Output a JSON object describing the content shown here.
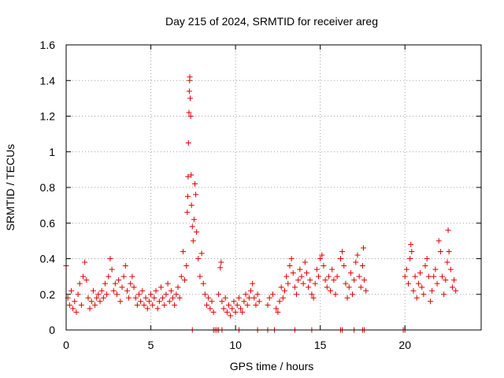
{
  "chart_data": {
    "type": "scatter",
    "title": "Day 215 of 2024, SRMTID for receiver areg",
    "xlabel": "GPS time / hours",
    "ylabel": "SRMTID / TECUs",
    "xlim": [
      0,
      24.5
    ],
    "ylim": [
      0,
      1.6
    ],
    "xticks": [
      0,
      5,
      10,
      15,
      20
    ],
    "xtick_labels": [
      "0",
      "5",
      "10",
      "15",
      "20"
    ],
    "yticks": [
      0,
      0.2,
      0.4,
      0.6,
      0.8,
      1,
      1.2,
      1.4,
      1.6
    ],
    "ytick_labels": [
      "0",
      "0.2",
      "0.4",
      "0.6",
      "0.8",
      "1",
      "1.2",
      "1.4",
      "1.6"
    ],
    "grid": true,
    "marker": "+",
    "marker_color": "#e00000",
    "series": [
      {
        "name": "SRMTID",
        "points": [
          [
            0.0,
            0.36
          ],
          [
            0.1,
            0.18
          ],
          [
            0.2,
            0.14
          ],
          [
            0.3,
            0.22
          ],
          [
            0.4,
            0.12
          ],
          [
            0.5,
            0.16
          ],
          [
            0.6,
            0.1
          ],
          [
            0.7,
            0.2
          ],
          [
            0.8,
            0.26
          ],
          [
            0.9,
            0.14
          ],
          [
            1.0,
            0.3
          ],
          [
            1.1,
            0.38
          ],
          [
            1.2,
            0.28
          ],
          [
            1.3,
            0.18
          ],
          [
            1.4,
            0.12
          ],
          [
            1.5,
            0.16
          ],
          [
            1.6,
            0.22
          ],
          [
            1.7,
            0.14
          ],
          [
            1.8,
            0.18
          ],
          [
            1.9,
            0.2
          ],
          [
            2.0,
            0.16
          ],
          [
            2.1,
            0.22
          ],
          [
            2.2,
            0.18
          ],
          [
            2.3,
            0.26
          ],
          [
            2.4,
            0.2
          ],
          [
            2.5,
            0.3
          ],
          [
            2.6,
            0.4
          ],
          [
            2.7,
            0.34
          ],
          [
            2.8,
            0.22
          ],
          [
            2.9,
            0.26
          ],
          [
            3.0,
            0.2
          ],
          [
            3.1,
            0.28
          ],
          [
            3.2,
            0.16
          ],
          [
            3.3,
            0.24
          ],
          [
            3.4,
            0.3
          ],
          [
            3.5,
            0.36
          ],
          [
            3.6,
            0.22
          ],
          [
            3.7,
            0.18
          ],
          [
            3.8,
            0.26
          ],
          [
            3.9,
            0.3
          ],
          [
            4.0,
            0.24
          ],
          [
            4.1,
            0.18
          ],
          [
            4.2,
            0.14
          ],
          [
            4.3,
            0.2
          ],
          [
            4.4,
            0.16
          ],
          [
            4.5,
            0.22
          ],
          [
            4.6,
            0.14
          ],
          [
            4.7,
            0.18
          ],
          [
            4.8,
            0.12
          ],
          [
            4.9,
            0.16
          ],
          [
            5.0,
            0.2
          ],
          [
            5.1,
            0.14
          ],
          [
            5.2,
            0.18
          ],
          [
            5.3,
            0.22
          ],
          [
            5.4,
            0.12
          ],
          [
            5.5,
            0.16
          ],
          [
            5.6,
            0.24
          ],
          [
            5.7,
            0.18
          ],
          [
            5.8,
            0.14
          ],
          [
            5.9,
            0.2
          ],
          [
            6.0,
            0.26
          ],
          [
            6.1,
            0.16
          ],
          [
            6.2,
            0.22
          ],
          [
            6.3,
            0.18
          ],
          [
            6.4,
            0.14
          ],
          [
            6.5,
            0.2
          ],
          [
            6.6,
            0.24
          ],
          [
            6.7,
            0.18
          ],
          [
            6.8,
            0.3
          ],
          [
            6.9,
            0.44
          ],
          [
            7.0,
            0.28
          ],
          [
            7.1,
            0.36
          ],
          [
            7.15,
            0.66
          ],
          [
            7.18,
            0.75
          ],
          [
            7.2,
            0.86
          ],
          [
            7.22,
            1.05
          ],
          [
            7.25,
            1.22
          ],
          [
            7.27,
            1.34
          ],
          [
            7.29,
            1.4
          ],
          [
            7.3,
            1.42
          ],
          [
            7.32,
            1.3
          ],
          [
            7.35,
            1.2
          ],
          [
            7.38,
            0.87
          ],
          [
            7.4,
            0.7
          ],
          [
            7.45,
            0.58
          ],
          [
            7.5,
            0.5
          ],
          [
            7.55,
            0.62
          ],
          [
            7.6,
            0.82
          ],
          [
            7.65,
            0.76
          ],
          [
            7.7,
            0.55
          ],
          [
            7.8,
            0.4
          ],
          [
            7.9,
            0.3
          ],
          [
            8.0,
            0.43
          ],
          [
            8.1,
            0.26
          ],
          [
            8.2,
            0.2
          ],
          [
            8.3,
            0.14
          ],
          [
            8.4,
            0.18
          ],
          [
            8.5,
            0.12
          ],
          [
            8.6,
            0.16
          ],
          [
            8.7,
            0.1
          ],
          [
            9.0,
            0.2
          ],
          [
            9.1,
            0.35
          ],
          [
            9.15,
            0.38
          ],
          [
            9.2,
            0.16
          ],
          [
            9.3,
            0.12
          ],
          [
            9.4,
            0.18
          ],
          [
            9.5,
            0.1
          ],
          [
            9.6,
            0.14
          ],
          [
            9.7,
            0.08
          ],
          [
            9.8,
            0.12
          ],
          [
            9.9,
            0.16
          ],
          [
            10.0,
            0.1
          ],
          [
            10.1,
            0.14
          ],
          [
            10.2,
            0.18
          ],
          [
            10.3,
            0.12
          ],
          [
            10.4,
            0.1
          ],
          [
            10.5,
            0.16
          ],
          [
            10.6,
            0.2
          ],
          [
            10.7,
            0.14
          ],
          [
            10.8,
            0.18
          ],
          [
            10.9,
            0.22
          ],
          [
            11.0,
            0.26
          ],
          [
            11.1,
            0.18
          ],
          [
            11.2,
            0.14
          ],
          [
            11.3,
            0.2
          ],
          [
            11.4,
            0.16
          ],
          [
            11.9,
            0.14
          ],
          [
            12.0,
            0.18
          ],
          [
            12.2,
            0.2
          ],
          [
            12.4,
            0.12
          ],
          [
            12.5,
            0.1
          ],
          [
            12.6,
            0.16
          ],
          [
            12.7,
            0.24
          ],
          [
            12.8,
            0.18
          ],
          [
            12.9,
            0.22
          ],
          [
            13.0,
            0.3
          ],
          [
            13.1,
            0.26
          ],
          [
            13.2,
            0.36
          ],
          [
            13.3,
            0.4
          ],
          [
            13.4,
            0.32
          ],
          [
            13.5,
            0.24
          ],
          [
            13.6,
            0.2
          ],
          [
            13.7,
            0.28
          ],
          [
            13.8,
            0.34
          ],
          [
            13.9,
            0.3
          ],
          [
            14.0,
            0.26
          ],
          [
            14.1,
            0.38
          ],
          [
            14.2,
            0.32
          ],
          [
            14.3,
            0.24
          ],
          [
            14.4,
            0.28
          ],
          [
            14.5,
            0.2
          ],
          [
            14.6,
            0.18
          ],
          [
            14.7,
            0.26
          ],
          [
            14.8,
            0.34
          ],
          [
            14.9,
            0.3
          ],
          [
            15.0,
            0.4
          ],
          [
            15.1,
            0.42
          ],
          [
            15.2,
            0.36
          ],
          [
            15.3,
            0.28
          ],
          [
            15.4,
            0.24
          ],
          [
            15.5,
            0.3
          ],
          [
            15.6,
            0.22
          ],
          [
            15.7,
            0.34
          ],
          [
            15.8,
            0.28
          ],
          [
            15.9,
            0.2
          ],
          [
            16.0,
            0.3
          ],
          [
            16.2,
            0.4
          ],
          [
            16.3,
            0.44
          ],
          [
            16.4,
            0.36
          ],
          [
            16.5,
            0.26
          ],
          [
            16.6,
            0.18
          ],
          [
            16.7,
            0.24
          ],
          [
            16.8,
            0.32
          ],
          [
            16.9,
            0.2
          ],
          [
            17.0,
            0.28
          ],
          [
            17.1,
            0.38
          ],
          [
            17.2,
            0.42
          ],
          [
            17.3,
            0.3
          ],
          [
            17.4,
            0.24
          ],
          [
            17.5,
            0.36
          ],
          [
            17.55,
            0.46
          ],
          [
            17.6,
            0.28
          ],
          [
            17.7,
            0.22
          ],
          [
            20.0,
            0.3
          ],
          [
            20.1,
            0.34
          ],
          [
            20.2,
            0.26
          ],
          [
            20.3,
            0.4
          ],
          [
            20.35,
            0.48
          ],
          [
            20.4,
            0.44
          ],
          [
            20.5,
            0.22
          ],
          [
            20.6,
            0.3
          ],
          [
            20.7,
            0.18
          ],
          [
            20.8,
            0.26
          ],
          [
            20.9,
            0.32
          ],
          [
            21.0,
            0.24
          ],
          [
            21.1,
            0.2
          ],
          [
            21.2,
            0.36
          ],
          [
            21.3,
            0.4
          ],
          [
            21.4,
            0.3
          ],
          [
            21.5,
            0.16
          ],
          [
            21.6,
            0.22
          ],
          [
            21.7,
            0.3
          ],
          [
            21.8,
            0.34
          ],
          [
            21.9,
            0.26
          ],
          [
            22.0,
            0.5
          ],
          [
            22.1,
            0.44
          ],
          [
            22.2,
            0.3
          ],
          [
            22.3,
            0.2
          ],
          [
            22.4,
            0.28
          ],
          [
            22.5,
            0.38
          ],
          [
            22.55,
            0.56
          ],
          [
            22.6,
            0.44
          ],
          [
            22.7,
            0.34
          ],
          [
            22.8,
            0.24
          ],
          [
            22.9,
            0.28
          ],
          [
            23.0,
            0.22
          ]
        ]
      }
    ],
    "zero_points": [
      7.45,
      8.7,
      8.8,
      8.9,
      9.0,
      9.2,
      10.2,
      11.3,
      11.9,
      12.3,
      13.5,
      14.5,
      16.2,
      16.3,
      17.0,
      17.5,
      17.6,
      19.9,
      20.0
    ]
  }
}
